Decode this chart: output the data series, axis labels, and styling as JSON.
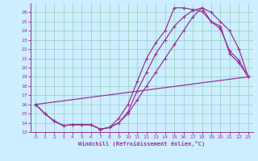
{
  "xlabel": "Windchill (Refroidissement éolien,°C)",
  "bg_color": "#cceeff",
  "grid_color": "#99ccbb",
  "line_color": "#993399",
  "xlim": [
    -0.5,
    23.5
  ],
  "ylim": [
    13,
    27
  ],
  "yticks": [
    13,
    14,
    15,
    16,
    17,
    18,
    19,
    20,
    21,
    22,
    23,
    24,
    25,
    26
  ],
  "xticks": [
    0,
    1,
    2,
    3,
    4,
    5,
    6,
    7,
    8,
    9,
    10,
    11,
    12,
    13,
    14,
    15,
    16,
    17,
    18,
    19,
    20,
    21,
    22,
    23
  ],
  "line1_x": [
    0,
    1,
    2,
    3,
    4,
    5,
    6,
    7,
    8,
    9,
    10,
    11,
    12,
    13,
    14,
    15,
    16,
    17,
    18,
    19,
    20,
    21,
    22,
    23
  ],
  "line1_y": [
    16.0,
    15.0,
    14.2,
    13.7,
    13.8,
    13.8,
    13.8,
    13.3,
    13.5,
    14.5,
    16.0,
    18.5,
    21.0,
    22.7,
    24.0,
    26.5,
    26.5,
    26.3,
    26.1,
    25.0,
    24.2,
    21.8,
    20.8,
    19.0
  ],
  "line2_x": [
    0,
    1,
    2,
    3,
    4,
    5,
    6,
    7,
    8,
    9,
    10,
    11,
    12,
    13,
    14,
    15,
    16,
    17,
    18,
    19,
    20,
    21,
    22,
    23
  ],
  "line2_y": [
    16.0,
    15.0,
    14.2,
    13.7,
    13.8,
    13.8,
    13.8,
    13.3,
    13.5,
    14.0,
    15.2,
    17.5,
    19.5,
    21.5,
    23.0,
    24.5,
    25.5,
    26.2,
    26.5,
    26.0,
    25.0,
    24.0,
    22.0,
    19.0
  ],
  "line3_x": [
    0,
    23
  ],
  "line3_y": [
    16.0,
    19.0
  ],
  "line4_x": [
    0,
    1,
    2,
    3,
    4,
    5,
    6,
    7,
    8,
    9,
    10,
    11,
    12,
    13,
    14,
    15,
    16,
    17,
    18,
    19,
    20,
    21,
    22,
    23
  ],
  "line4_y": [
    16.0,
    15.0,
    14.2,
    13.7,
    13.8,
    13.8,
    13.8,
    13.3,
    13.5,
    14.0,
    15.0,
    16.5,
    18.0,
    19.5,
    21.0,
    22.5,
    24.0,
    25.5,
    26.5,
    25.0,
    24.5,
    21.5,
    20.5,
    19.0
  ]
}
